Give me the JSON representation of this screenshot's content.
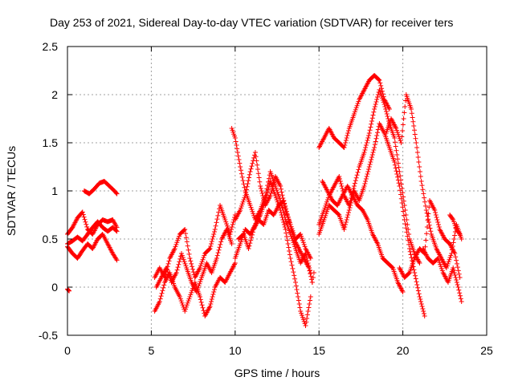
{
  "chart_data": {
    "type": "scatter",
    "title": "Day 253 of 2021, Sidereal Day-to-day VTEC variation (SDTVAR) for receiver ters",
    "xlabel": "GPS time / hours",
    "ylabel": "SDTVAR / TECUs",
    "xlim": [
      0,
      25
    ],
    "ylim": [
      -0.5,
      2.5
    ],
    "xticks": [
      0,
      5,
      10,
      15,
      20,
      25
    ],
    "yticks": [
      -0.5,
      0,
      0.5,
      1,
      1.5,
      2,
      2.5
    ],
    "xtick_labels": [
      "0",
      "5",
      "10",
      "15",
      "20",
      "25"
    ],
    "ytick_labels": [
      "-0.5",
      "0",
      "0.5",
      "1",
      "1.5",
      "2",
      "2.5"
    ],
    "grid": true,
    "marker": "+",
    "color": "#ff0000",
    "series": [
      {
        "name": "SDTVAR",
        "segments": [
          {
            "x": [
              0.0,
              0.3,
              0.6,
              0.9,
              1.2,
              1.5,
              1.8,
              2.1,
              2.4,
              2.7,
              2.95
            ],
            "y": [
              0.42,
              0.35,
              0.3,
              0.38,
              0.45,
              0.4,
              0.5,
              0.55,
              0.45,
              0.35,
              0.28
            ]
          },
          {
            "x": [
              0.0,
              0.3,
              0.6,
              0.9,
              1.2,
              1.5,
              1.8,
              2.1,
              2.4,
              2.7,
              2.95
            ],
            "y": [
              0.55,
              0.62,
              0.72,
              0.78,
              0.6,
              0.55,
              0.65,
              0.7,
              0.68,
              0.7,
              0.62
            ]
          },
          {
            "x": [
              0.0,
              0.3,
              0.6,
              0.9,
              1.2,
              1.5,
              1.8,
              2.1,
              2.4,
              2.7,
              2.95
            ],
            "y": [
              0.45,
              0.48,
              0.52,
              0.48,
              0.55,
              0.62,
              0.68,
              0.62,
              0.58,
              0.62,
              0.58
            ]
          },
          {
            "x": [
              1.0,
              1.3,
              1.6,
              1.9,
              2.2,
              2.5,
              2.8,
              2.95
            ],
            "y": [
              1.0,
              0.97,
              1.02,
              1.08,
              1.1,
              1.05,
              1.0,
              0.97
            ]
          },
          {
            "x": [
              0.0,
              0.1
            ],
            "y": [
              -0.02,
              -0.04
            ]
          },
          {
            "x": [
              5.2,
              5.5,
              5.8,
              6.1,
              6.4,
              6.7,
              7.0,
              7.3,
              7.6,
              7.9,
              8.2,
              8.5,
              8.8,
              9.1,
              9.4,
              9.7,
              10.0
            ],
            "y": [
              -0.25,
              -0.15,
              0.05,
              0.15,
              0.0,
              -0.1,
              -0.25,
              -0.1,
              0.05,
              -0.1,
              -0.3,
              -0.2,
              0.0,
              0.1,
              0.05,
              0.15,
              0.25
            ]
          },
          {
            "x": [
              5.2,
              5.5,
              5.8,
              6.1,
              6.4,
              6.7,
              7.0,
              7.3,
              7.6,
              7.9,
              8.2,
              8.5,
              8.8,
              9.1,
              9.4,
              9.7,
              10.0
            ],
            "y": [
              0.1,
              0.2,
              0.1,
              0.3,
              0.4,
              0.55,
              0.6,
              0.3,
              0.1,
              0.2,
              0.35,
              0.4,
              0.6,
              0.85,
              0.7,
              0.55,
              0.75
            ]
          },
          {
            "x": [
              5.3,
              5.6,
              5.9,
              6.2,
              6.5,
              6.8,
              7.1,
              7.4,
              7.7,
              8.0,
              8.3,
              8.6,
              8.9,
              9.2,
              9.5,
              9.8
            ],
            "y": [
              0.0,
              0.1,
              0.2,
              0.05,
              0.15,
              0.35,
              0.2,
              0.05,
              -0.05,
              0.1,
              0.25,
              0.15,
              0.3,
              0.5,
              0.6,
              0.45
            ]
          },
          {
            "x": [
              9.8,
              10.0,
              10.3,
              10.6,
              10.9,
              11.2,
              11.5,
              11.8,
              12.1,
              12.4,
              12.7,
              13.0,
              13.3,
              13.6,
              13.9,
              14.2,
              14.5
            ],
            "y": [
              1.65,
              1.55,
              1.25,
              1.0,
              0.85,
              0.7,
              0.8,
              0.95,
              1.2,
              1.05,
              0.9,
              0.7,
              0.55,
              0.4,
              0.25,
              0.35,
              0.15
            ]
          },
          {
            "x": [
              10.0,
              10.3,
              10.6,
              10.9,
              11.2,
              11.5,
              11.8,
              12.1,
              12.4,
              12.7,
              13.0,
              13.3,
              13.6,
              13.9,
              14.2,
              14.5
            ],
            "y": [
              0.7,
              0.8,
              0.95,
              1.2,
              1.4,
              1.05,
              0.85,
              0.95,
              1.15,
              1.05,
              0.8,
              0.65,
              0.5,
              0.55,
              0.4,
              0.3
            ]
          },
          {
            "x": [
              10.0,
              10.3,
              10.6,
              10.9,
              11.2,
              11.5,
              11.8,
              12.1,
              12.4,
              12.7,
              13.0,
              13.3,
              13.6,
              13.9,
              14.2,
              14.5
            ],
            "y": [
              0.3,
              0.45,
              0.6,
              0.55,
              0.65,
              0.75,
              0.9,
              1.1,
              0.95,
              0.8,
              0.6,
              0.3,
              0.05,
              -0.25,
              -0.4,
              -0.1
            ]
          },
          {
            "x": [
              10.2,
              10.5,
              10.8,
              11.1,
              11.4,
              11.7,
              12.0,
              12.3,
              12.6,
              12.9,
              13.2,
              13.5,
              13.8,
              14.1,
              14.4,
              14.6
            ],
            "y": [
              0.5,
              0.55,
              0.4,
              0.6,
              0.7,
              0.65,
              0.8,
              0.75,
              0.85,
              0.9,
              0.7,
              0.5,
              0.4,
              0.3,
              0.2,
              0.05
            ]
          },
          {
            "x": [
              15.0,
              15.3,
              15.6,
              15.9,
              16.2,
              16.5,
              16.8,
              17.1,
              17.4,
              17.7,
              18.0,
              18.3,
              18.6,
              18.9,
              19.2
            ],
            "y": [
              1.45,
              1.55,
              1.65,
              1.55,
              1.5,
              1.45,
              1.65,
              1.8,
              1.95,
              2.05,
              2.15,
              2.2,
              2.15,
              1.95,
              1.85
            ]
          },
          {
            "x": [
              15.0,
              15.3,
              15.6,
              15.9,
              16.2,
              16.5,
              16.8,
              17.1,
              17.4,
              17.7,
              18.0,
              18.3,
              18.6,
              18.9,
              19.2,
              19.5,
              19.8,
              20.1,
              20.4,
              20.7,
              21.0
            ],
            "y": [
              0.65,
              0.8,
              0.95,
              1.05,
              1.15,
              0.95,
              0.85,
              1.05,
              1.25,
              1.4,
              1.6,
              1.85,
              2.05,
              1.9,
              1.7,
              1.55,
              1.2,
              0.85,
              0.5,
              0.35,
              0.25
            ]
          },
          {
            "x": [
              15.0,
              15.3,
              15.6,
              15.9,
              16.2,
              16.5,
              16.8,
              17.1,
              17.4,
              17.7,
              18.0,
              18.3,
              18.6,
              18.9,
              19.2,
              19.5,
              19.8,
              20.1,
              20.4,
              20.7,
              21.0,
              21.3
            ],
            "y": [
              0.55,
              0.7,
              0.85,
              0.8,
              0.75,
              0.6,
              0.8,
              1.0,
              0.9,
              1.05,
              1.25,
              1.45,
              1.7,
              1.6,
              1.45,
              1.3,
              1.05,
              0.7,
              0.4,
              0.15,
              -0.1,
              -0.3
            ]
          },
          {
            "x": [
              15.2,
              15.5,
              15.8,
              16.1,
              16.4,
              16.7,
              17.0,
              17.3,
              17.6,
              17.9,
              18.2,
              18.5,
              18.8,
              19.1,
              19.4,
              19.7,
              20.0
            ],
            "y": [
              1.1,
              1.0,
              0.9,
              0.85,
              0.95,
              1.05,
              0.95,
              0.85,
              0.8,
              0.7,
              0.55,
              0.45,
              0.3,
              0.25,
              0.2,
              0.05,
              -0.05
            ]
          },
          {
            "x": [
              19.0,
              19.3,
              19.6,
              19.9,
              20.2,
              20.5,
              20.8,
              21.1,
              21.4,
              21.7,
              22.0,
              22.3,
              22.6,
              22.9,
              23.2,
              23.5
            ],
            "y": [
              1.6,
              1.75,
              1.65,
              1.5,
              2.0,
              1.85,
              1.5,
              1.1,
              0.8,
              0.55,
              0.4,
              0.3,
              0.2,
              0.35,
              0.65,
              0.5
            ]
          },
          {
            "x": [
              19.8,
              20.1,
              20.4,
              20.7,
              21.0,
              21.3,
              21.6,
              21.9,
              22.2,
              22.5,
              22.8,
              23.1,
              23.4
            ],
            "y": [
              0.2,
              0.1,
              0.15,
              0.3,
              0.4,
              0.35,
              0.9,
              0.8,
              0.6,
              0.5,
              0.45,
              0.35,
              0.1
            ]
          },
          {
            "x": [
              21.2,
              21.5,
              21.8,
              22.1,
              22.4,
              22.7,
              23.0,
              23.3,
              23.5
            ],
            "y": [
              0.4,
              0.3,
              0.25,
              0.3,
              0.15,
              0.05,
              0.2,
              0.0,
              -0.15
            ]
          },
          {
            "x": [
              22.8,
              23.0,
              23.2,
              23.4
            ],
            "y": [
              0.75,
              0.7,
              0.6,
              0.55
            ]
          },
          {
            "x": [
              14.6,
              14.7
            ],
            "y": [
              0.05,
              0.15
            ]
          }
        ]
      }
    ]
  }
}
